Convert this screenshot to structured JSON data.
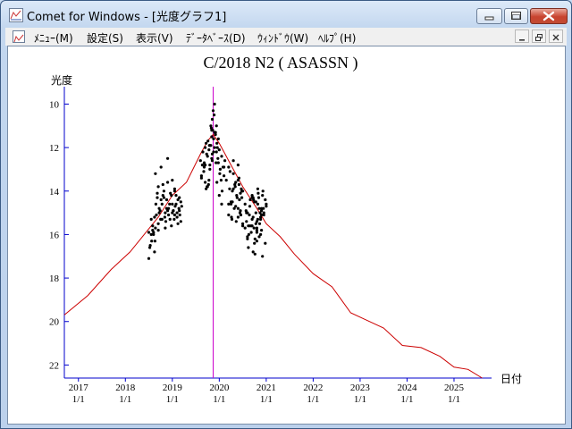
{
  "window": {
    "title": "Comet for Windows - [光度グラフ1]"
  },
  "menu": {
    "items": [
      "ﾒﾆｭｰ(M)",
      "設定(S)",
      "表示(V)",
      "ﾃﾞｰﾀﾍﾞｰｽ(D)",
      "ｳｨﾝﾄﾞｳ(W)",
      "ﾍﾙﾌﾟ(H)"
    ]
  },
  "icons": {
    "app": "chart-app-icon",
    "minimize": "minimize-icon",
    "maximize": "maximize-icon",
    "close": "close-icon",
    "mdi_minimize": "minimize-icon",
    "mdi_restore": "restore-icon",
    "mdi_close": "close-icon"
  },
  "colors": {
    "axis": "#0000cc",
    "model_curve": "#cc0000",
    "perihelion_line": "#cc00cc",
    "observations": "#000000"
  },
  "chart_data": {
    "type": "scatter",
    "title": "C/2018 N2 ( ASASSN )",
    "ylabel": "光度",
    "xlabel": "日付",
    "ylim": [
      22.6,
      9.2
    ],
    "y_inverted": true,
    "yticks": [
      10,
      12,
      14,
      16,
      18,
      20,
      22
    ],
    "xlim": [
      2016.7,
      2025.8
    ],
    "xticks": [
      {
        "value": 2017,
        "year": "2017",
        "date": "1/1"
      },
      {
        "value": 2018,
        "year": "2018",
        "date": "1/1"
      },
      {
        "value": 2019,
        "year": "2019",
        "date": "1/1"
      },
      {
        "value": 2020,
        "year": "2020",
        "date": "1/1"
      },
      {
        "value": 2021,
        "year": "2021",
        "date": "1/1"
      },
      {
        "value": 2022,
        "year": "2022",
        "date": "1/1"
      },
      {
        "value": 2023,
        "year": "2023",
        "date": "1/1"
      },
      {
        "value": 2024,
        "year": "2024",
        "date": "1/1"
      },
      {
        "value": 2025,
        "year": "2025",
        "date": "1/1"
      }
    ],
    "perihelion_x": 2019.87,
    "series": [
      {
        "kind": "line",
        "x": [
          2016.7,
          2017.2,
          2017.7,
          2018.1,
          2018.4,
          2018.7,
          2019.0,
          2019.3,
          2019.6,
          2019.75,
          2019.87,
          2020.0,
          2020.2,
          2020.5,
          2020.8,
          2021.0,
          2021.3,
          2021.6,
          2022.0,
          2022.4,
          2022.8,
          2023.1,
          2023.5,
          2023.9,
          2024.3,
          2024.7,
          2025.0,
          2025.3,
          2025.6
        ],
        "y": [
          19.7,
          18.8,
          17.6,
          16.8,
          16.0,
          15.2,
          14.2,
          13.6,
          12.3,
          11.7,
          11.4,
          11.8,
          12.6,
          13.8,
          14.8,
          15.5,
          16.1,
          16.9,
          17.8,
          18.4,
          19.6,
          19.9,
          20.3,
          21.1,
          21.2,
          21.6,
          22.1,
          22.2,
          22.6
        ]
      },
      {
        "kind": "scatter",
        "x": [
          2018.5,
          2018.52,
          2018.55,
          2018.58,
          2018.6,
          2018.62,
          2018.63,
          2018.65,
          2018.68,
          2018.7,
          2018.72,
          2018.75,
          2018.78,
          2018.8,
          2018.82,
          2018.85,
          2018.88,
          2018.9,
          2018.92,
          2018.95,
          2018.98,
          2019.0,
          2019.02,
          2019.05,
          2019.05,
          2019.08,
          2019.1,
          2019.12,
          2019.15,
          2019.18,
          2019.2,
          2018.56,
          2018.64,
          2018.74,
          2018.84,
          2018.94,
          2019.04,
          2019.14,
          2018.5,
          2018.6,
          2018.7,
          2018.8,
          2018.9,
          2019.0,
          2019.1,
          2018.53,
          2018.66,
          2018.76,
          2018.86,
          2018.96,
          2019.06,
          2019.16,
          2018.58,
          2018.68,
          2018.78,
          2018.88,
          2018.98,
          2019.08,
          2019.18,
          2018.62,
          2018.72,
          2018.82,
          2018.92,
          2019.02,
          2019.12,
          2018.55,
          2018.7,
          2018.85,
          2019.0,
          2019.15,
          2018.64,
          2018.76,
          2018.9,
          2019.05,
          2019.6,
          2019.62,
          2019.65,
          2019.68,
          2019.7,
          2019.72,
          2019.75,
          2019.76,
          2019.78,
          2019.8,
          2019.82,
          2019.84,
          2019.85,
          2019.86,
          2019.88,
          2019.9,
          2019.92,
          2019.94,
          2019.95,
          2019.97,
          2020.0,
          2020.02,
          2020.05,
          2020.08,
          2020.1,
          2020.12,
          2020.15,
          2019.64,
          2019.7,
          2019.74,
          2019.8,
          2019.85,
          2019.9,
          2019.96,
          2020.01,
          2020.06,
          2020.1,
          2019.67,
          2019.73,
          2019.79,
          2019.83,
          2019.88,
          2019.93,
          2019.98,
          2020.04,
          2019.82,
          2019.85,
          2019.89,
          2019.92,
          2019.77,
          2019.8,
          2019.84,
          2019.62,
          2019.68,
          2019.72,
          2019.95,
          2020.0,
          2020.05,
          2019.7,
          2019.75,
          2019.78,
          2019.84,
          2019.87,
          2019.9,
          2019.94,
          2019.98,
          2020.2,
          2020.22,
          2020.25,
          2020.28,
          2020.3,
          2020.32,
          2020.35,
          2020.38,
          2020.4,
          2020.42,
          2020.45,
          2020.48,
          2020.5,
          2020.2,
          2020.25,
          2020.3,
          2020.35,
          2020.4,
          2020.45,
          2020.5,
          2020.23,
          2020.27,
          2020.33,
          2020.37,
          2020.43,
          2020.47,
          2020.2,
          2020.3,
          2020.4,
          2020.28,
          2020.36,
          2020.46,
          2020.4,
          2020.44,
          2020.26,
          2020.34,
          2020.42,
          2020.48,
          2020.5,
          2020.55,
          2020.58,
          2020.6,
          2020.62,
          2020.65,
          2020.68,
          2020.7,
          2020.72,
          2020.75,
          2020.78,
          2020.8,
          2020.82,
          2020.85,
          2020.88,
          2020.9,
          2020.92,
          2020.95,
          2020.98,
          2021.0,
          2020.55,
          2020.6,
          2020.65,
          2020.7,
          2020.75,
          2020.8,
          2020.85,
          2020.9,
          2020.95,
          2021.0,
          2020.57,
          2020.63,
          2020.68,
          2020.73,
          2020.78,
          2020.83,
          2020.88,
          2020.93,
          2020.58,
          2020.66,
          2020.74,
          2020.82,
          2020.9,
          2020.98,
          2020.6,
          2020.7,
          2020.8,
          2020.9,
          2020.62,
          2020.72,
          2020.78,
          2020.84,
          2020.88,
          2020.76,
          2020.86,
          2020.94,
          2020.64,
          2020.7,
          2020.8,
          2020.92,
          2020.76,
          2020.8,
          2020.72,
          2020.82,
          2020.87
        ],
        "y": [
          17.1,
          16.6,
          16.0,
          15.6,
          15.9,
          15.2,
          16.3,
          14.6,
          14.1,
          13.8,
          14.8,
          15.3,
          14.6,
          13.7,
          14.3,
          15.0,
          14.4,
          13.6,
          14.8,
          15.3,
          14.2,
          13.5,
          14.9,
          15.1,
          14.0,
          14.6,
          15.2,
          14.4,
          14.9,
          15.4,
          14.7,
          16.3,
          15.7,
          14.9,
          15.2,
          14.6,
          15.3,
          14.8,
          15.9,
          16.0,
          15.5,
          14.2,
          14.9,
          14.6,
          15.0,
          16.5,
          15.1,
          14.4,
          15.4,
          14.1,
          14.7,
          15.1,
          15.8,
          14.3,
          15.3,
          14.8,
          15.6,
          14.2,
          14.5,
          16.8,
          15.0,
          14.0,
          15.1,
          14.9,
          15.5,
          15.3,
          15.8,
          15.7,
          15.0,
          14.3,
          13.2,
          12.9,
          12.5,
          13.9,
          12.6,
          13.4,
          12.2,
          12.9,
          13.6,
          11.8,
          12.4,
          11.7,
          12.1,
          12.8,
          11.9,
          11.5,
          12.3,
          11.2,
          11.6,
          12.0,
          11.4,
          12.2,
          11.8,
          12.5,
          12.1,
          13.0,
          12.4,
          12.9,
          13.3,
          12.6,
          13.5,
          12.8,
          12.0,
          13.8,
          11.9,
          12.6,
          11.3,
          12.0,
          13.2,
          14.0,
          12.9,
          13.1,
          12.3,
          11.9,
          11.1,
          12.2,
          12.7,
          11.6,
          13.5,
          11.0,
          10.7,
          10.5,
          11.3,
          13.7,
          13.0,
          11.2,
          13.3,
          12.7,
          13.9,
          13.6,
          14.2,
          14.6,
          12.8,
          13.8,
          13.5,
          12.5,
          10.3,
          10.0,
          11.0,
          12.7,
          12.9,
          13.9,
          14.5,
          14.0,
          13.2,
          14.8,
          13.6,
          14.3,
          15.2,
          13.4,
          14.9,
          14.0,
          15.5,
          15.1,
          14.6,
          13.9,
          14.7,
          12.8,
          14.1,
          15.6,
          13.1,
          15.3,
          13.7,
          14.2,
          14.4,
          13.9,
          14.6,
          12.6,
          13.5,
          14.5,
          15.4,
          15.1,
          14.8,
          15.0,
          15.2,
          13.8,
          13.7,
          14.3,
          14.0,
          14.6,
          15.4,
          16.1,
          15.6,
          14.7,
          15.9,
          15.3,
          16.8,
          16.4,
          15.0,
          15.7,
          14.6,
          16.1,
          15.3,
          14.9,
          14.2,
          15.1,
          14.4,
          14.7,
          15.7,
          15.0,
          15.6,
          14.2,
          14.5,
          15.4,
          14.8,
          15.8,
          15.0,
          14.6,
          14.9,
          16.0,
          15.6,
          14.4,
          15.5,
          14.1,
          15.2,
          14.0,
          15.0,
          14.4,
          15.7,
          15.3,
          14.8,
          16.4,
          16.2,
          14.3,
          15.9,
          15.1,
          16.6,
          15.2,
          14.5,
          14.3,
          16.0,
          16.2,
          15.5,
          14.8,
          15.1,
          15.6,
          16.3,
          17.0,
          16.9,
          15.8,
          14.3,
          13.9,
          15.0
        ]
      }
    ]
  }
}
